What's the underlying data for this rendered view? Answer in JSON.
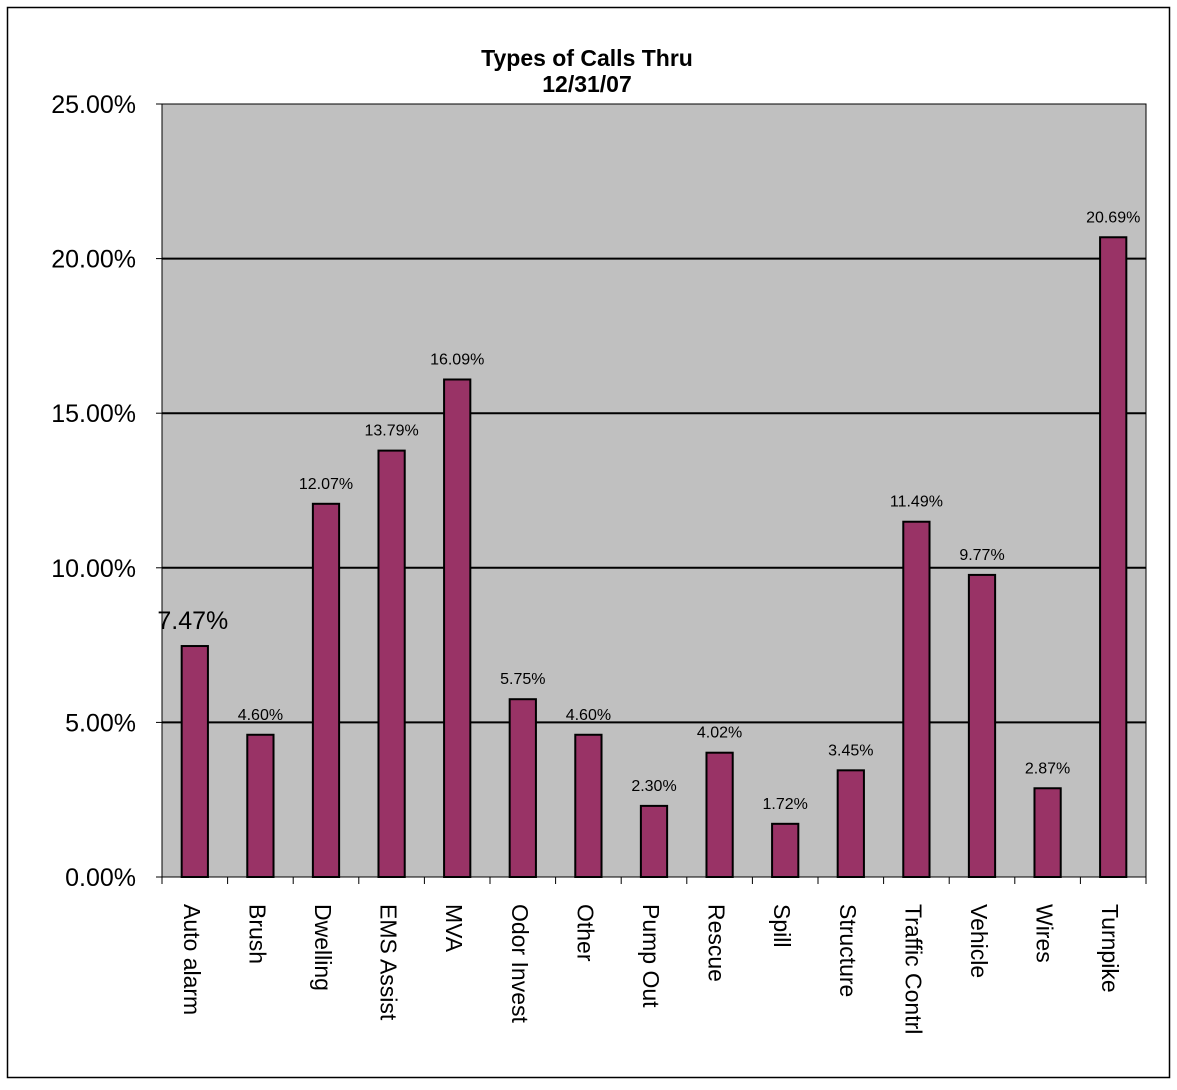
{
  "chart_data": {
    "type": "bar",
    "title": "Types of Calls Thru",
    "subtitle": "12/31/07",
    "categories": [
      "Auto alarm",
      "Brush",
      "Dwelling",
      "EMS Assist",
      "MVA",
      "Odor Invest",
      "Other",
      "Pump Out",
      "Rescue",
      "Spill",
      "Structure",
      "Traffic Contrl",
      "Vehicle",
      "Wires",
      "Turnpike"
    ],
    "values": [
      7.47,
      4.6,
      12.07,
      13.79,
      16.09,
      5.75,
      4.6,
      2.3,
      4.02,
      1.72,
      3.45,
      11.49,
      9.77,
      2.87,
      20.69
    ],
    "data_labels": [
      "7.47%",
      "4.60%",
      "12.07%",
      "13.79%",
      "16.09%",
      "5.75%",
      "4.60%",
      "2.30%",
      "4.02%",
      "1.72%",
      "3.45%",
      "11.49%",
      "9.77%",
      "2.87%",
      "20.69%"
    ],
    "yticks": [
      "0.00%",
      "5.00%",
      "10.00%",
      "15.00%",
      "20.00%",
      "25.00%"
    ],
    "ylim": [
      0,
      25
    ],
    "xlabel": "",
    "ylabel": "",
    "grid": true,
    "legend": "none",
    "colors": {
      "bar_fill": "#993366",
      "bar_stroke": "#000000",
      "plot_background": "#c0c0c0",
      "gridline": "#000000"
    }
  }
}
